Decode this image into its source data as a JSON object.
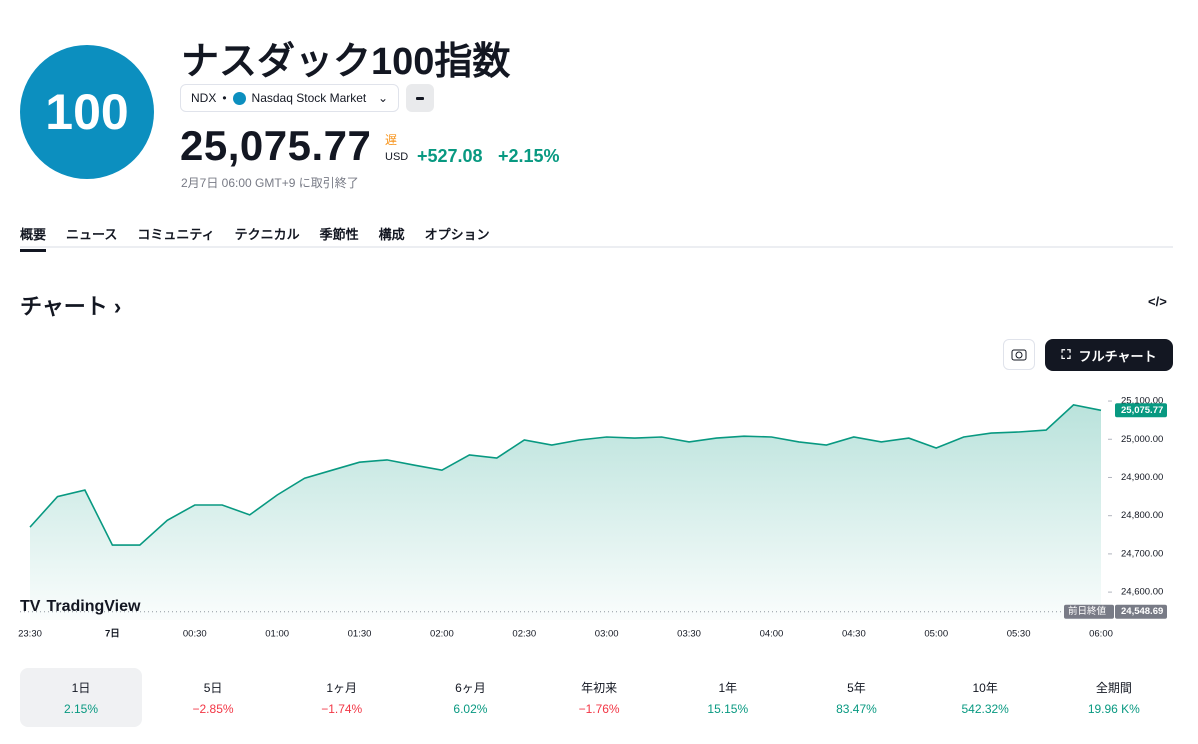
{
  "header": {
    "logo": "100",
    "title": "ナスダック100指数",
    "symbol": "NDX",
    "exchange": "Nasdaq Stock Market",
    "price": "25,075.77",
    "delay": "遅",
    "currency": "USD",
    "change": "+527.08",
    "change_pct": "+2.15%",
    "timestamp": "2月7日 06:00 GMT+9 に取引終了"
  },
  "tabs": [
    "概要",
    "ニュース",
    "コミュニティ",
    "テクニカル",
    "季節性",
    "構成",
    "オプション"
  ],
  "section_title": "チャート",
  "full_chart_button": "フルチャート",
  "branding": "TradingView",
  "chart_data": {
    "type": "area",
    "color": "#089981",
    "categories": [
      "23:30",
      null,
      null,
      "7日",
      null,
      null,
      "00:30",
      null,
      null,
      "01:00",
      null,
      null,
      "01:30",
      null,
      null,
      "02:00",
      null,
      null,
      "02:30",
      null,
      null,
      "03:00",
      null,
      null,
      "03:30",
      null,
      null,
      "04:00",
      null,
      null,
      "04:30",
      null,
      null,
      "05:00",
      null,
      null,
      "05:30",
      null,
      null,
      "06:00"
    ],
    "values": [
      24770,
      24850,
      24867,
      24723,
      24723,
      24788,
      24828,
      24828,
      24802,
      24854,
      24898,
      24919,
      24940,
      24946,
      24932,
      24919,
      24959,
      24951,
      24998,
      24985,
      24998,
      25006,
      25003,
      25006,
      24993,
      25003,
      25008,
      25006,
      24993,
      24985,
      25006,
      24993,
      25003,
      24977,
      25006,
      25016,
      25019,
      25024,
      25090,
      25075.77
    ],
    "ylim": [
      24527,
      25142
    ],
    "yticks": [
      {
        "value": 24600,
        "label": "24,600.00"
      },
      {
        "value": 24700,
        "label": "24,700.00"
      },
      {
        "value": 24800,
        "label": "24,800.00"
      },
      {
        "value": 24900,
        "label": "24,900.00"
      },
      {
        "value": 25000,
        "label": "25,000.00"
      },
      {
        "value": 25100,
        "label": "25,100.00"
      }
    ],
    "last_price": {
      "value": 25075.77,
      "label": "25,075.77"
    },
    "prev_close": {
      "name": "前日終値",
      "value": 24548.69,
      "label": "24,548.69"
    }
  },
  "periods": [
    {
      "label": "1日",
      "value": "2.15%"
    },
    {
      "label": "5日",
      "value": "−2.85%"
    },
    {
      "label": "1ヶ月",
      "value": "−1.74%"
    },
    {
      "label": "6ヶ月",
      "value": "6.02%"
    },
    {
      "label": "年初来",
      "value": "−1.76%"
    },
    {
      "label": "1年",
      "value": "15.15%"
    },
    {
      "label": "5年",
      "value": "83.47%"
    },
    {
      "label": "10年",
      "value": "542.32%"
    },
    {
      "label": "全期間",
      "value": "19.96 K%"
    }
  ]
}
